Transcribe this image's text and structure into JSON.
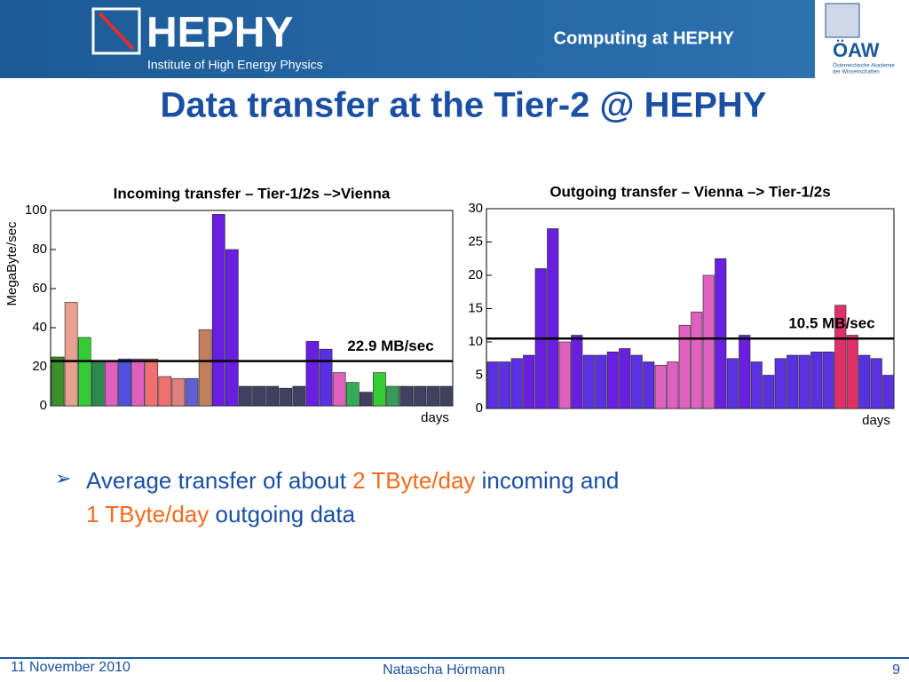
{
  "header": {
    "logo": "HEPHY",
    "logo_subtitle": "Institute of High Energy Physics",
    "section": "Computing at HEPHY",
    "org": "ÖAW",
    "org_subtitle_1": "Österreichische Akademie",
    "org_subtitle_2": "der Wissenschaften"
  },
  "title": "Data transfer at the Tier-2 @ HEPHY",
  "chart_data": [
    {
      "type": "bar",
      "title": "Incoming transfer – Tier-1/2s –>Vienna",
      "y_label": "MegaByte/sec",
      "x_label": "days",
      "ylim": [
        0,
        100
      ],
      "yticks": [
        0,
        20,
        40,
        60,
        80,
        100
      ],
      "values": [
        25,
        53,
        35,
        23,
        23,
        24,
        24,
        24,
        15,
        14,
        14,
        39,
        98,
        80,
        10,
        10,
        10,
        9,
        10,
        33,
        29,
        17,
        12,
        7,
        17,
        10,
        10,
        10,
        10,
        10
      ],
      "colors": [
        "#3c8f2c",
        "#e8a090",
        "#33cc33",
        "#2a8a4a",
        "#e060c0",
        "#5050e0",
        "#e060c0",
        "#f07070",
        "#f07070",
        "#e08080",
        "#6060d0",
        "#c08060",
        "#6a1ee0",
        "#6a1ee0",
        "#404060",
        "#404060",
        "#404060",
        "#404060",
        "#404060",
        "#6a1ee0",
        "#5a30e0",
        "#e060c0",
        "#33aa55",
        "#404060",
        "#33cc33",
        "#3a9a5a",
        "#404060",
        "#404060",
        "#404060",
        "#404060"
      ],
      "average": {
        "value": 22.9,
        "label": "22.9 MB/sec"
      }
    },
    {
      "type": "bar",
      "title": "Outgoing transfer – Vienna –> Tier-1/2s",
      "x_label": "days",
      "ylim": [
        0,
        30
      ],
      "yticks": [
        0,
        5,
        10,
        15,
        20,
        25,
        30
      ],
      "values": [
        7,
        7,
        7.5,
        8,
        21,
        27,
        10,
        11,
        8,
        8,
        8.5,
        9,
        8,
        7,
        6.5,
        7,
        12.5,
        14.5,
        20,
        22.5,
        7.5,
        11,
        7,
        5,
        7.5,
        8,
        8,
        8.5,
        8.5,
        15.5,
        11,
        8,
        7.5,
        5
      ],
      "colors": [
        "#5a30e0",
        "#5a30e0",
        "#5a30e0",
        "#6a1ee0",
        "#6a1ee0",
        "#6a1ee0",
        "#e060c0",
        "#6a1ee0",
        "#5a30e0",
        "#5a30e0",
        "#6a1ee0",
        "#6a1ee0",
        "#5a30e0",
        "#5a30e0",
        "#e060c0",
        "#e060c0",
        "#e060c0",
        "#e060c0",
        "#e060c0",
        "#6a1ee0",
        "#5a30e0",
        "#6a1ee0",
        "#5a30e0",
        "#5a30e0",
        "#5a30e0",
        "#5a30e0",
        "#5a30e0",
        "#5a30e0",
        "#5a30e0",
        "#e0306a",
        "#e0306a",
        "#5a30e0",
        "#5a30e0",
        "#5a30e0"
      ],
      "average": {
        "value": 10.5,
        "label": "10.5 MB/sec"
      }
    }
  ],
  "bullet": {
    "part1": "Average transfer of about ",
    "highlight1": "2 TByte/day",
    "part2": " incoming and",
    "highlight2": "1 TByte/day",
    "part3": " outgoing data"
  },
  "footer": {
    "date": "11 November 2010",
    "author": "Natascha Hörmann",
    "page": "9"
  }
}
